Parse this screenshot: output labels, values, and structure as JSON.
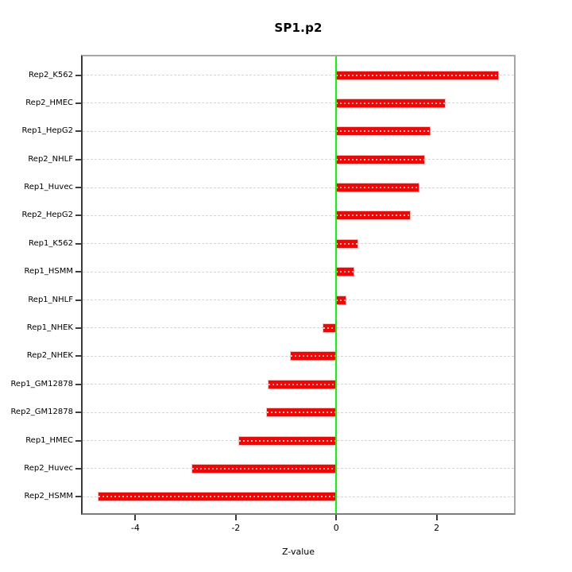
{
  "chart_data": {
    "type": "bar",
    "orientation": "horizontal",
    "title": "SP1.p2",
    "xlabel": "Z-value",
    "categories": [
      "Rep2_K562",
      "Rep2_HMEC",
      "Rep1_HepG2",
      "Rep2_NHLF",
      "Rep1_Huvec",
      "Rep2_HepG2",
      "Rep1_K562",
      "Rep1_HSMM",
      "Rep1_NHLF",
      "Rep1_NHEK",
      "Rep2_NHEK",
      "Rep1_GM12878",
      "Rep2_GM12878",
      "Rep1_HMEC",
      "Rep2_Huvec",
      "Rep2_HSMM"
    ],
    "values": [
      3.23,
      2.16,
      1.87,
      1.75,
      1.64,
      1.47,
      0.42,
      0.35,
      0.19,
      -0.26,
      -0.9,
      -1.35,
      -1.38,
      -1.93,
      -2.86,
      -4.74
    ],
    "x_ticks": [
      -4,
      -2,
      0,
      2
    ],
    "xlim": [
      -5.05,
      3.54
    ],
    "grid": true,
    "legend": null,
    "colors": {
      "bar": "#ff0000",
      "zero_line": "#00ff00",
      "gridline": "#d6d6d6",
      "axis_text": "#000000"
    }
  }
}
